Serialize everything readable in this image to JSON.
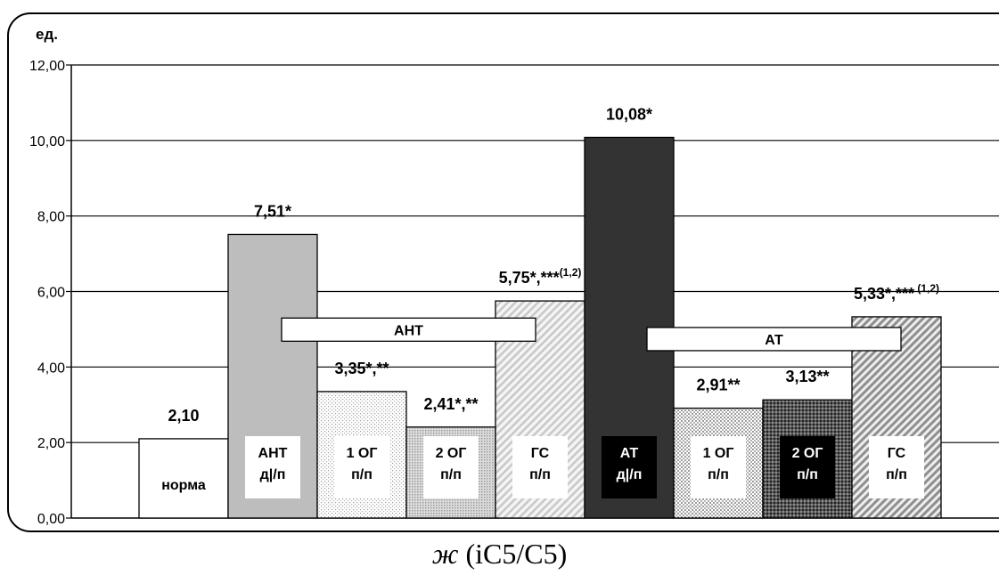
{
  "chart_data": {
    "type": "bar",
    "ylabel": "ед.",
    "ylim": [
      0,
      12
    ],
    "yticks": [
      "0,00",
      "2,00",
      "4,00",
      "6,00",
      "8,00",
      "10,00",
      "12,00"
    ],
    "grid": true,
    "bars": [
      {
        "label": "норма",
        "value": 2.1,
        "value_label": "2,10",
        "fill": "white",
        "label_style": "plain"
      },
      {
        "label": "АНТ д|/п",
        "value": 7.51,
        "value_label": "7,51*",
        "fill": "lightgray",
        "label_style": "box"
      },
      {
        "label": "1 ОГ п/п",
        "value": 3.35,
        "value_label": "3,35*,**",
        "fill": "dots-light",
        "label_style": "box"
      },
      {
        "label": "2 ОГ п/п",
        "value": 2.41,
        "value_label": "2,41*,**",
        "fill": "dots-medium",
        "label_style": "box"
      },
      {
        "label": "ГС п/п",
        "value": 5.75,
        "value_label": "5,75*,***",
        "value_sup": "(1,2)",
        "fill": "diag-light",
        "label_style": "box"
      },
      {
        "label": "АТ д|/п",
        "value": 10.08,
        "value_label": "10,08*",
        "fill": "darkgray",
        "label_style": "dark"
      },
      {
        "label": "1 ОГ п/п",
        "value": 2.91,
        "value_label": "2,91**",
        "fill": "dots-coarse",
        "label_style": "box"
      },
      {
        "label": "2 ОГ п/п",
        "value": 3.13,
        "value_label": "3,13**",
        "fill": "dots-dark",
        "label_style": "dark"
      },
      {
        "label": "ГС п/п",
        "value": 5.33,
        "value_label": "5,33*,***",
        "value_sup": " (1,2)",
        "fill": "diag-dark",
        "label_style": "box"
      }
    ],
    "groups": [
      {
        "label": "АНТ",
        "y": 4.99,
        "from_bar": 1.6,
        "to_bar": 4.45
      },
      {
        "label": "АТ",
        "y": 4.74,
        "from_bar": 5.7,
        "to_bar": 8.55
      }
    ]
  },
  "caption": {
    "italic": "ж",
    "rest": " (iC5/C5)"
  }
}
